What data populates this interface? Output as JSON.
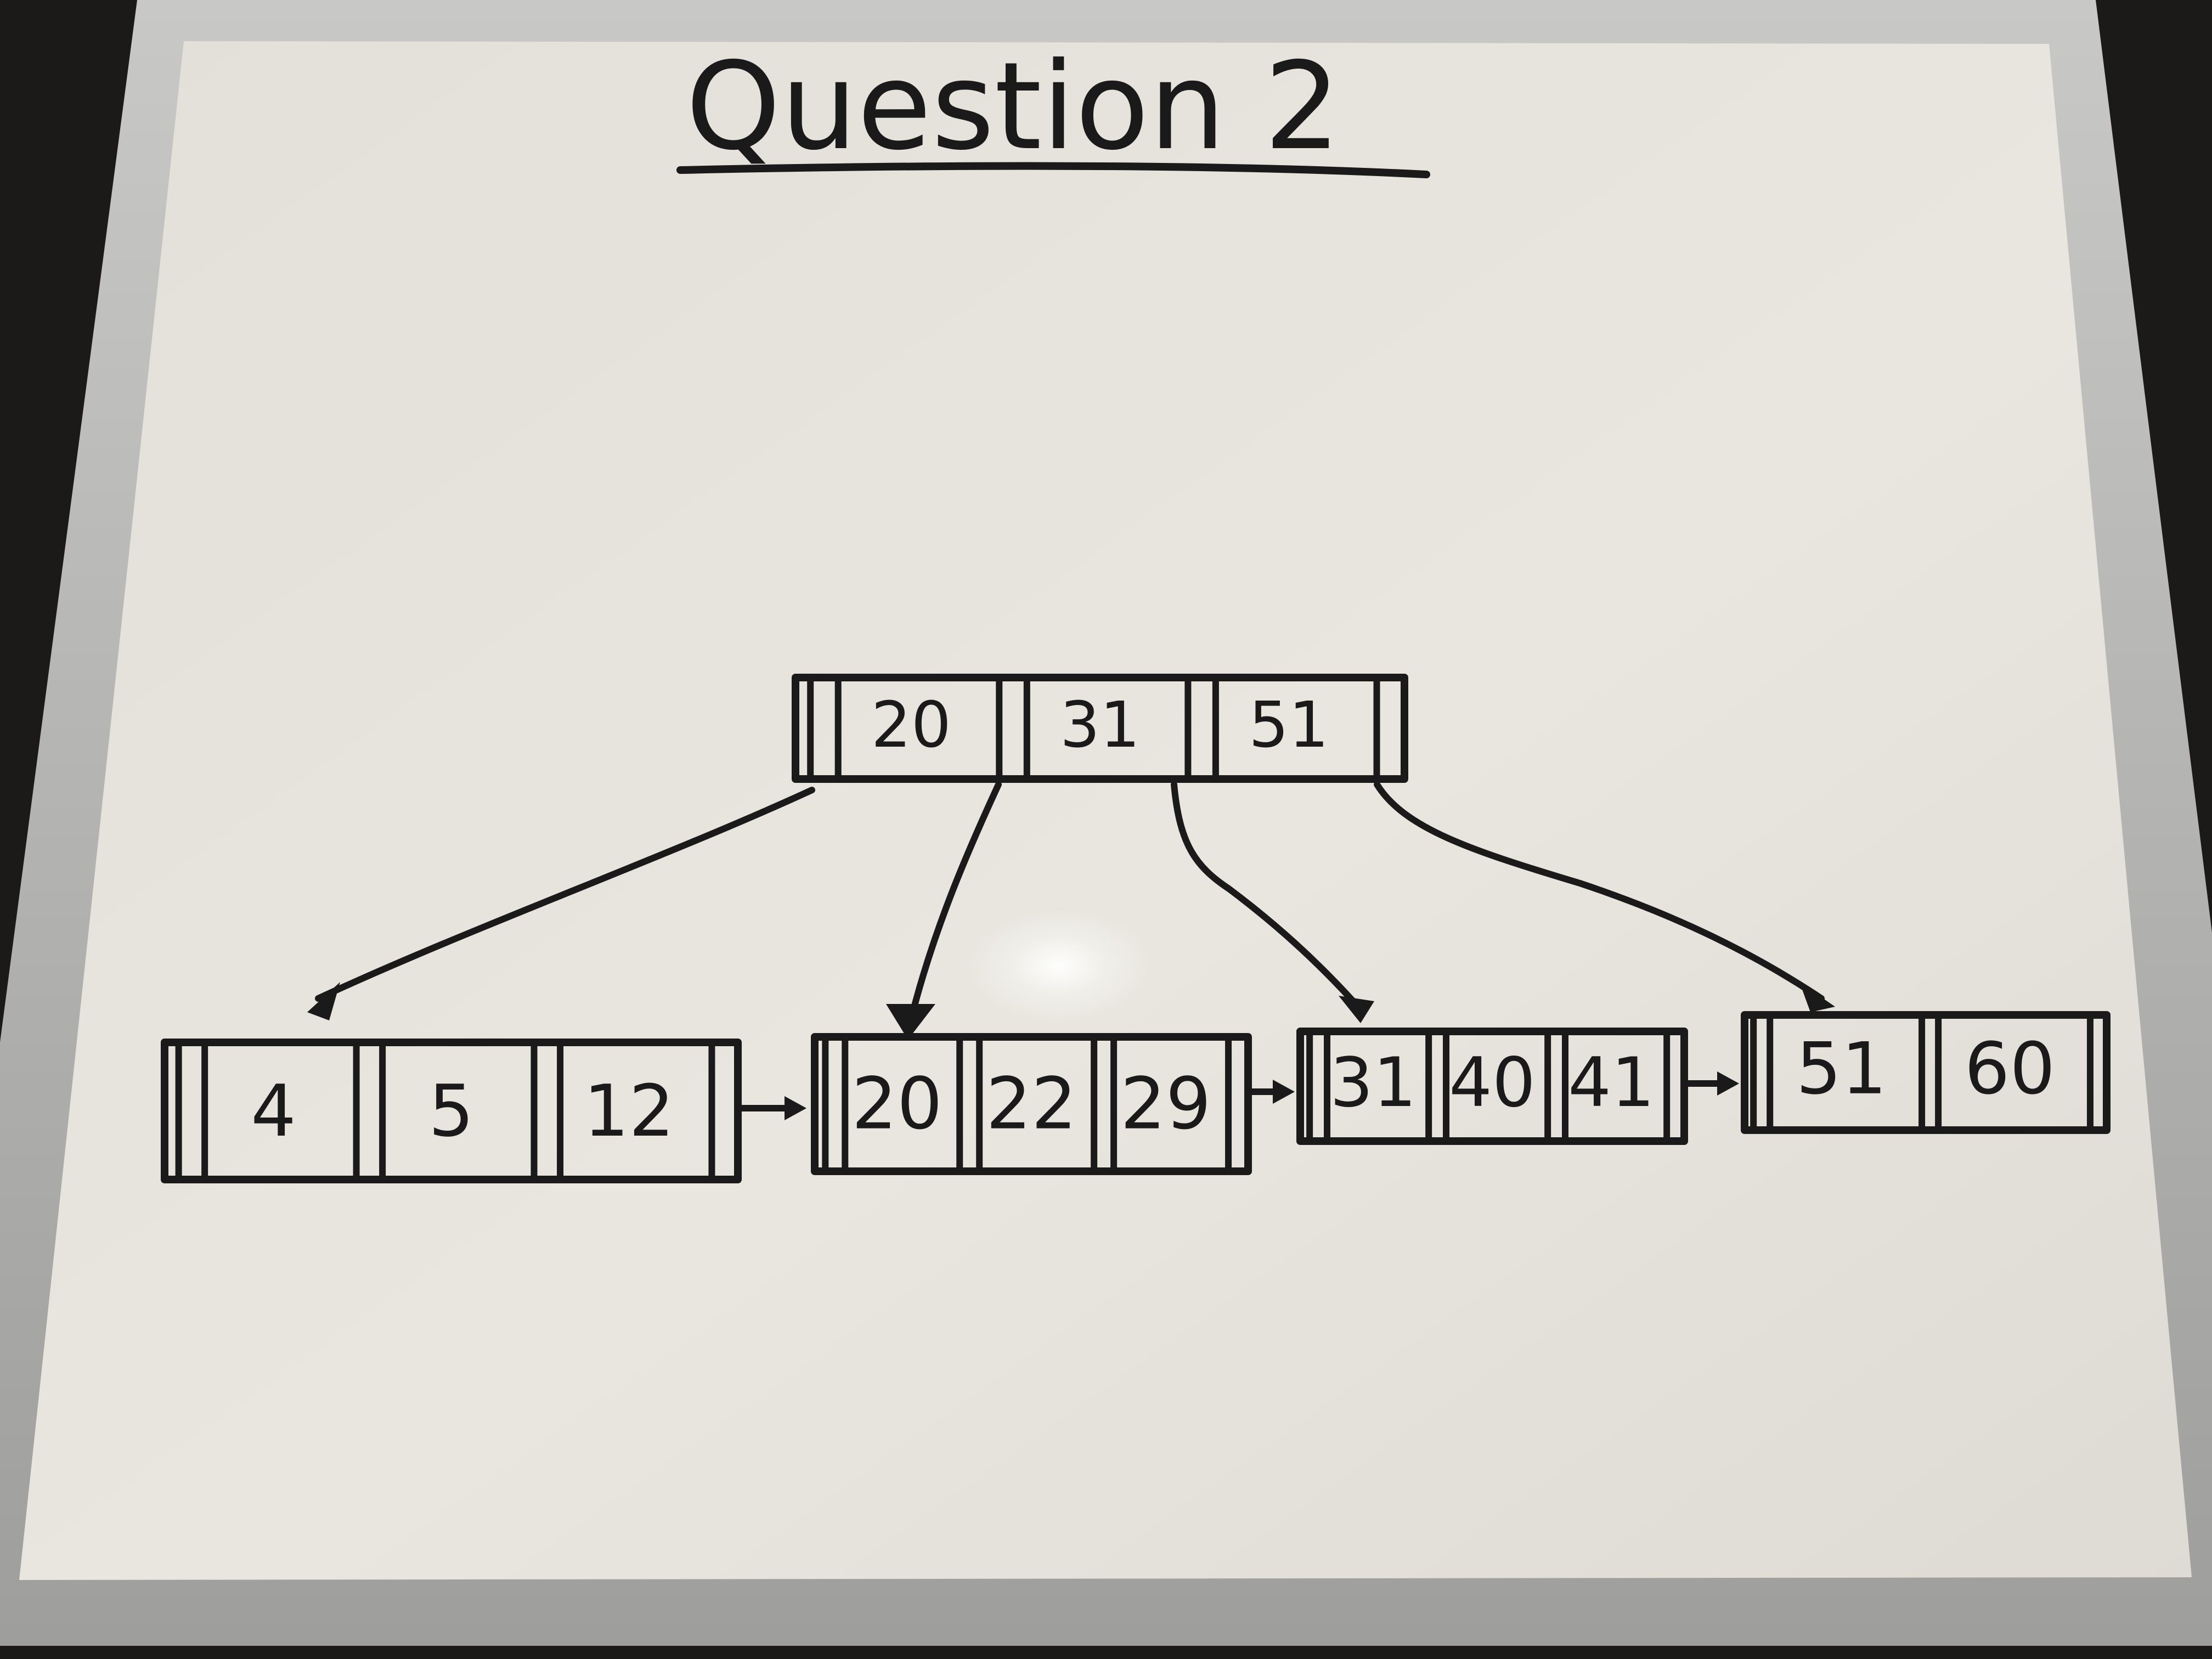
{
  "title": "Question 2",
  "root": {
    "keys": [
      "20",
      "31",
      "51"
    ]
  },
  "leaves": [
    {
      "keys": [
        "4",
        "5",
        "12"
      ]
    },
    {
      "keys": [
        "20",
        "22",
        "29"
      ]
    },
    {
      "keys": [
        "31",
        "40",
        "41"
      ]
    },
    {
      "keys": [
        "51",
        "60"
      ]
    }
  ],
  "colors": {
    "ink": "#1a1a1a",
    "board": "#e6e4dc",
    "frame": "#b4b4b2"
  }
}
